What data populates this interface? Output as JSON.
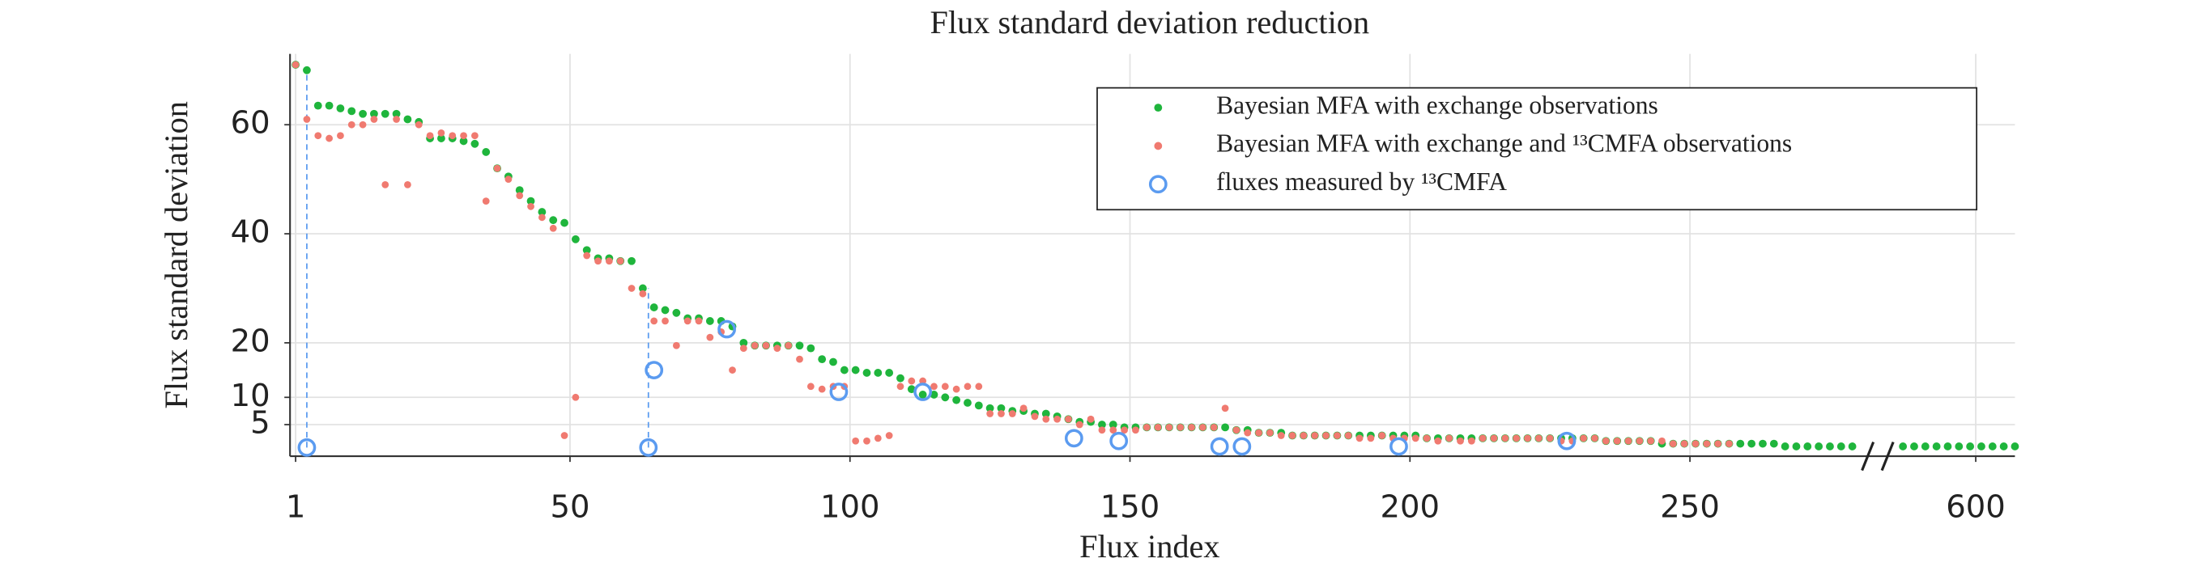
{
  "chart_data": {
    "type": "scatter",
    "title": "Flux standard deviation reduction",
    "x_label": "Flux index",
    "y_label": "Flux standard deviation",
    "xlim": [
      0,
      607
    ],
    "x_break": [
      282,
      584
    ],
    "xticks": [
      1,
      50,
      100,
      150,
      200,
      250,
      600
    ],
    "ylim": [
      -0.8,
      73
    ],
    "yticks": [
      5,
      10,
      20,
      40,
      60
    ],
    "grid": true,
    "legend": "upper right",
    "x": [
      1,
      3,
      5,
      7,
      9,
      11,
      13,
      15,
      17,
      19,
      21,
      23,
      25,
      27,
      29,
      31,
      33,
      35,
      37,
      39,
      41,
      43,
      45,
      47,
      49,
      51,
      53,
      55,
      57,
      59,
      61,
      63,
      65,
      67,
      69,
      71,
      73,
      75,
      77,
      79,
      81,
      83,
      85,
      87,
      89,
      91,
      93,
      95,
      97,
      99,
      101,
      103,
      105,
      107,
      109,
      111,
      113,
      115,
      117,
      119,
      121,
      123,
      125,
      127,
      129,
      131,
      133,
      135,
      137,
      139,
      141,
      143,
      145,
      147,
      149,
      151,
      153,
      155,
      157,
      159,
      161,
      163,
      165,
      167,
      169,
      171,
      173,
      175,
      177,
      179,
      181,
      183,
      185,
      187,
      189,
      191,
      193,
      195,
      197,
      199,
      201,
      203,
      205,
      207,
      209,
      211,
      213,
      215,
      217,
      219,
      221,
      223,
      225,
      227,
      229,
      231,
      233,
      235,
      237,
      239,
      241,
      243,
      245,
      247,
      249,
      251,
      253,
      255,
      257,
      259,
      261,
      263,
      265,
      267,
      269,
      271,
      273,
      275,
      277,
      279,
      587,
      589,
      591,
      593,
      595,
      597,
      599,
      601,
      603,
      605,
      607
    ],
    "series": [
      {
        "name": "Bayesian MFA with exchange observations",
        "color": "#1fb53c",
        "marker": "dot",
        "values": [
          71,
          70,
          63.5,
          63.5,
          63,
          62.5,
          62,
          62,
          62,
          62,
          61,
          60.5,
          57.5,
          57.5,
          57.5,
          57,
          56.5,
          55,
          52,
          50.5,
          48,
          46,
          44,
          42.5,
          42,
          39,
          37,
          35.5,
          35.5,
          35,
          35,
          30,
          26.5,
          26,
          25.5,
          24.5,
          24.5,
          24,
          24,
          23,
          20,
          19.5,
          19.5,
          19.5,
          19.5,
          19.5,
          19,
          17,
          16.5,
          15,
          15,
          14.5,
          14.5,
          14.5,
          13.5,
          11.5,
          10.5,
          10.5,
          10,
          9.5,
          9,
          8.5,
          8,
          8,
          7.5,
          7.5,
          7,
          7,
          6.5,
          6,
          5.5,
          5.5,
          5,
          5,
          4.5,
          4.5,
          4.5,
          4.5,
          4.5,
          4.5,
          4.5,
          4.5,
          4.5,
          4.5,
          4,
          4,
          3.5,
          3.5,
          3.5,
          3,
          3,
          3,
          3,
          3,
          3,
          3,
          3,
          3,
          3,
          3,
          3,
          2.5,
          2.5,
          2.5,
          2.5,
          2.5,
          2.5,
          2.5,
          2.5,
          2.5,
          2.5,
          2.5,
          2.5,
          2.5,
          2.5,
          2.5,
          2.5,
          2,
          2,
          2,
          2,
          2,
          1.5,
          1.5,
          1.5,
          1.5,
          1.5,
          1.5,
          1.5,
          1.5,
          1.5,
          1.5,
          1.5,
          1,
          1,
          1,
          1,
          1,
          1,
          1,
          1,
          1,
          1,
          1,
          1,
          1,
          1,
          1,
          1,
          1,
          1
        ]
      },
      {
        "name": "Bayesian MFA with exchange and ¹³CMFA observations",
        "color": "#f07a70",
        "marker": "dot",
        "values": [
          71,
          61,
          58,
          57.5,
          58,
          60,
          60,
          61,
          49,
          61,
          49,
          60,
          58,
          58.5,
          58,
          58,
          58,
          46,
          52,
          50,
          47,
          45,
          43,
          41,
          3,
          10,
          36,
          35,
          35,
          35,
          30,
          29,
          24,
          24,
          19.5,
          24,
          24,
          21,
          22,
          15,
          19,
          19.5,
          19.5,
          19,
          19.5,
          17,
          12,
          11.5,
          12,
          12,
          2,
          2,
          2.5,
          3,
          12,
          13,
          13,
          12,
          12,
          11.5,
          12,
          12,
          7,
          7,
          7,
          8,
          6.5,
          6,
          6,
          6,
          5,
          6,
          4,
          4,
          4,
          4,
          4.5,
          4.5,
          4.5,
          4.5,
          4.5,
          4.5,
          4.5,
          8,
          4,
          3.5,
          3.5,
          3.5,
          3,
          3,
          3,
          3,
          3,
          3,
          3,
          2.5,
          2.5,
          3,
          2.5,
          2.5,
          2.5,
          2.5,
          2,
          2.5,
          2,
          2,
          2.5,
          2.5,
          2.5,
          2.5,
          2.5,
          2.5,
          2.5,
          2,
          2,
          2.5,
          2.5,
          2,
          2,
          2,
          2,
          2,
          2,
          1.5,
          1.5,
          1.5,
          1.5,
          1.5,
          1.5,
          null,
          null,
          null,
          null,
          null,
          null,
          null,
          null,
          null,
          null,
          null,
          null,
          null,
          null,
          null,
          null,
          null,
          null,
          null,
          null,
          null,
          null
        ]
      },
      {
        "name": "fluxes measured by ¹³CMFA",
        "color": "#5b9bf0",
        "marker": "circle",
        "x": [
          3,
          64,
          65,
          78,
          98,
          113,
          140,
          148,
          166,
          170,
          198,
          228
        ],
        "values": [
          0.8,
          0.8,
          15,
          22.5,
          11,
          11,
          2.5,
          2,
          1,
          1,
          1,
          2
        ]
      }
    ],
    "dashed_lines": [
      {
        "x": 3,
        "y1": 0.8,
        "y2": 70
      },
      {
        "x": 64,
        "y1": 0.8,
        "y2": 30
      }
    ]
  }
}
